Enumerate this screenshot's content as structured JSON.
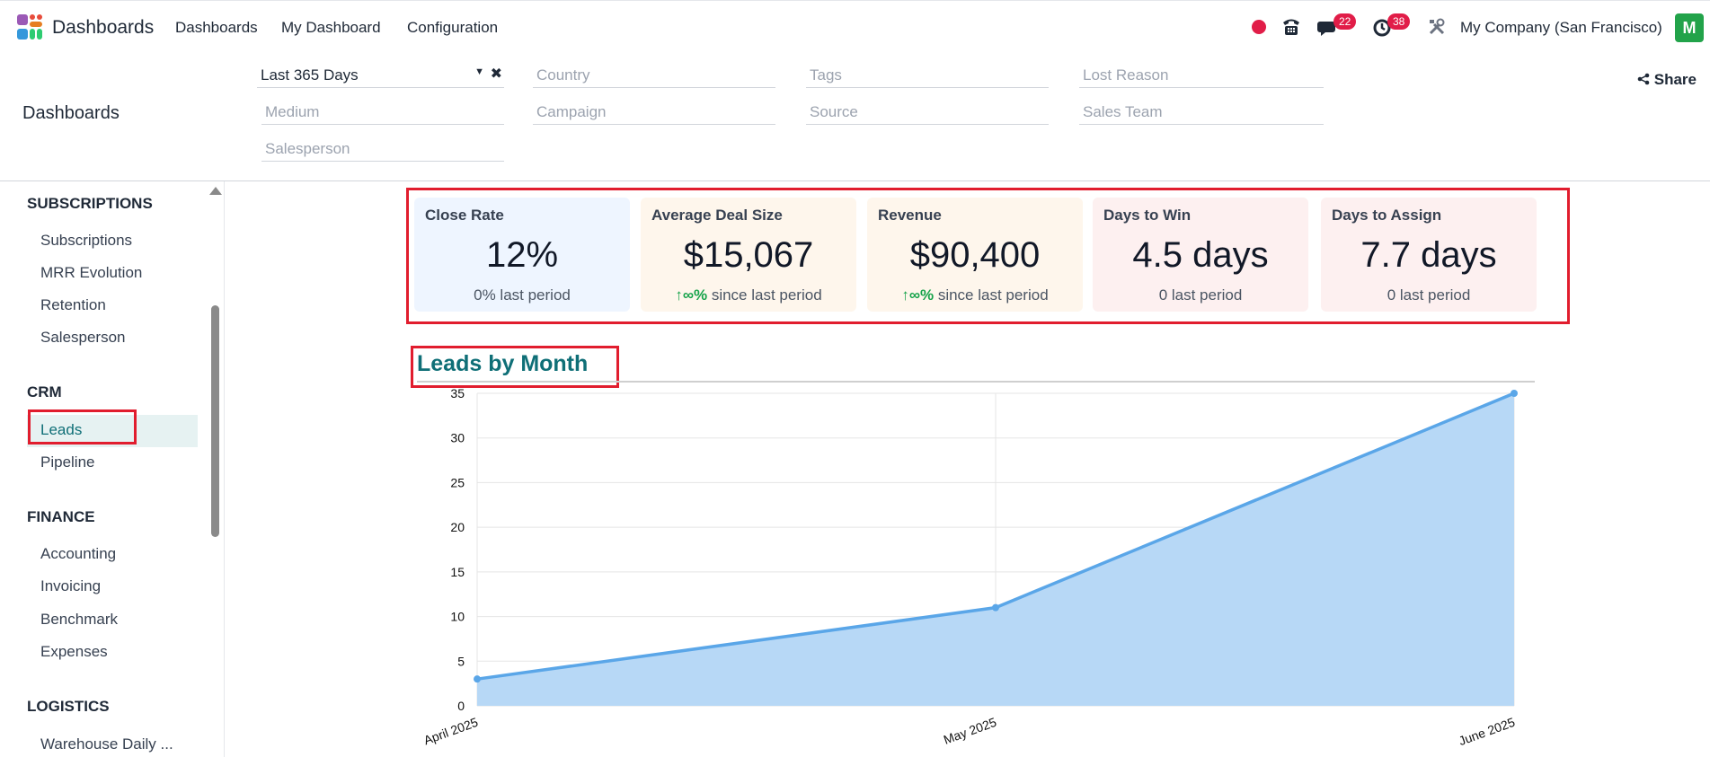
{
  "navbar": {
    "brand": "Dashboards",
    "menu": [
      "Dashboards",
      "My Dashboard",
      "Configuration"
    ],
    "messages_count": "22",
    "activities_count": "38",
    "company": "My Company (San Francisco)",
    "avatar_letter": "M"
  },
  "control_panel": {
    "title": "Dashboards",
    "share_label": "Share",
    "filters": {
      "date": "Last 365 Days",
      "country": "Country",
      "tags": "Tags",
      "lost_reason": "Lost Reason",
      "medium": "Medium",
      "campaign": "Campaign",
      "source": "Source",
      "sales_team": "Sales Team",
      "salesperson": "Salesperson"
    }
  },
  "sidebar": {
    "sections": [
      {
        "title": "SUBSCRIPTIONS",
        "items": [
          "Subscriptions",
          "MRR Evolution",
          "Retention",
          "Salesperson"
        ]
      },
      {
        "title": "CRM",
        "items": [
          "Leads",
          "Pipeline"
        ]
      },
      {
        "title": "FINANCE",
        "items": [
          "Accounting",
          "Invoicing",
          "Benchmark",
          "Expenses"
        ]
      },
      {
        "title": "LOGISTICS",
        "items": [
          "Warehouse Daily ..."
        ]
      }
    ],
    "active_item": "Leads"
  },
  "kpis": [
    {
      "title": "Close Rate",
      "value": "12%",
      "trend": "",
      "sub": "0% last period",
      "bg": "#eef5ff"
    },
    {
      "title": "Average Deal Size",
      "value": "$15,067",
      "trend": "∞%",
      "sub": "since last period",
      "bg": "#fef6ec"
    },
    {
      "title": "Revenue",
      "value": "$90,400",
      "trend": "∞%",
      "sub": "since last period",
      "bg": "#fef6ec"
    },
    {
      "title": "Days to Win",
      "value": "4.5 days",
      "trend": "",
      "sub": "0 last period",
      "bg": "#fdf0f0"
    },
    {
      "title": "Days to Assign",
      "value": "7.7 days",
      "trend": "",
      "sub": "0 last period",
      "bg": "#fdf0f0"
    }
  ],
  "colors": {
    "accent": "#0f6f77",
    "line": "#5aa6e8",
    "area": "#b7d8f6",
    "highlight": "#e11d2e"
  },
  "chart_data": {
    "type": "area",
    "title": "Leads by Month",
    "categories": [
      "April 2025",
      "May 2025",
      "June 2025"
    ],
    "values": [
      3,
      11,
      35
    ],
    "ylim": [
      0,
      35
    ],
    "yticks": [
      0,
      5,
      10,
      15,
      20,
      25,
      30,
      35
    ],
    "grid": true
  }
}
